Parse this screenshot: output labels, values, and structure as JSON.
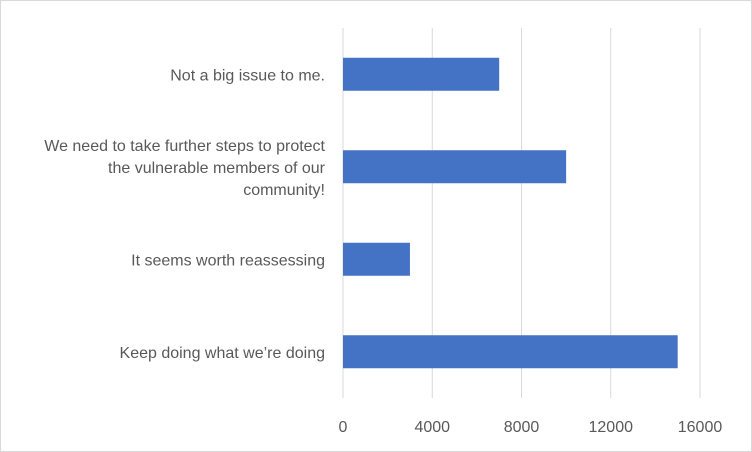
{
  "chart_data": {
    "type": "bar",
    "orientation": "horizontal",
    "title": "",
    "xlabel": "",
    "ylabel": "",
    "categories": [
      [
        "Not a big issue to me."
      ],
      [
        "We need to take further steps to protect",
        "the vulnerable members of our",
        "community!"
      ],
      [
        "It seems worth reassessing"
      ],
      [
        "Keep doing what we’re doing"
      ]
    ],
    "values": [
      7000,
      10000,
      3000,
      15000
    ],
    "xlim": [
      0,
      16000
    ],
    "ticks": [
      0,
      4000,
      8000,
      12000,
      16000
    ],
    "tick_labels": [
      "0",
      "4000",
      "8000",
      "12000",
      "16000"
    ],
    "grid": "vertical",
    "legend": "none",
    "bar_color": "#4472c4",
    "grid_color": "#d9d9d9"
  }
}
